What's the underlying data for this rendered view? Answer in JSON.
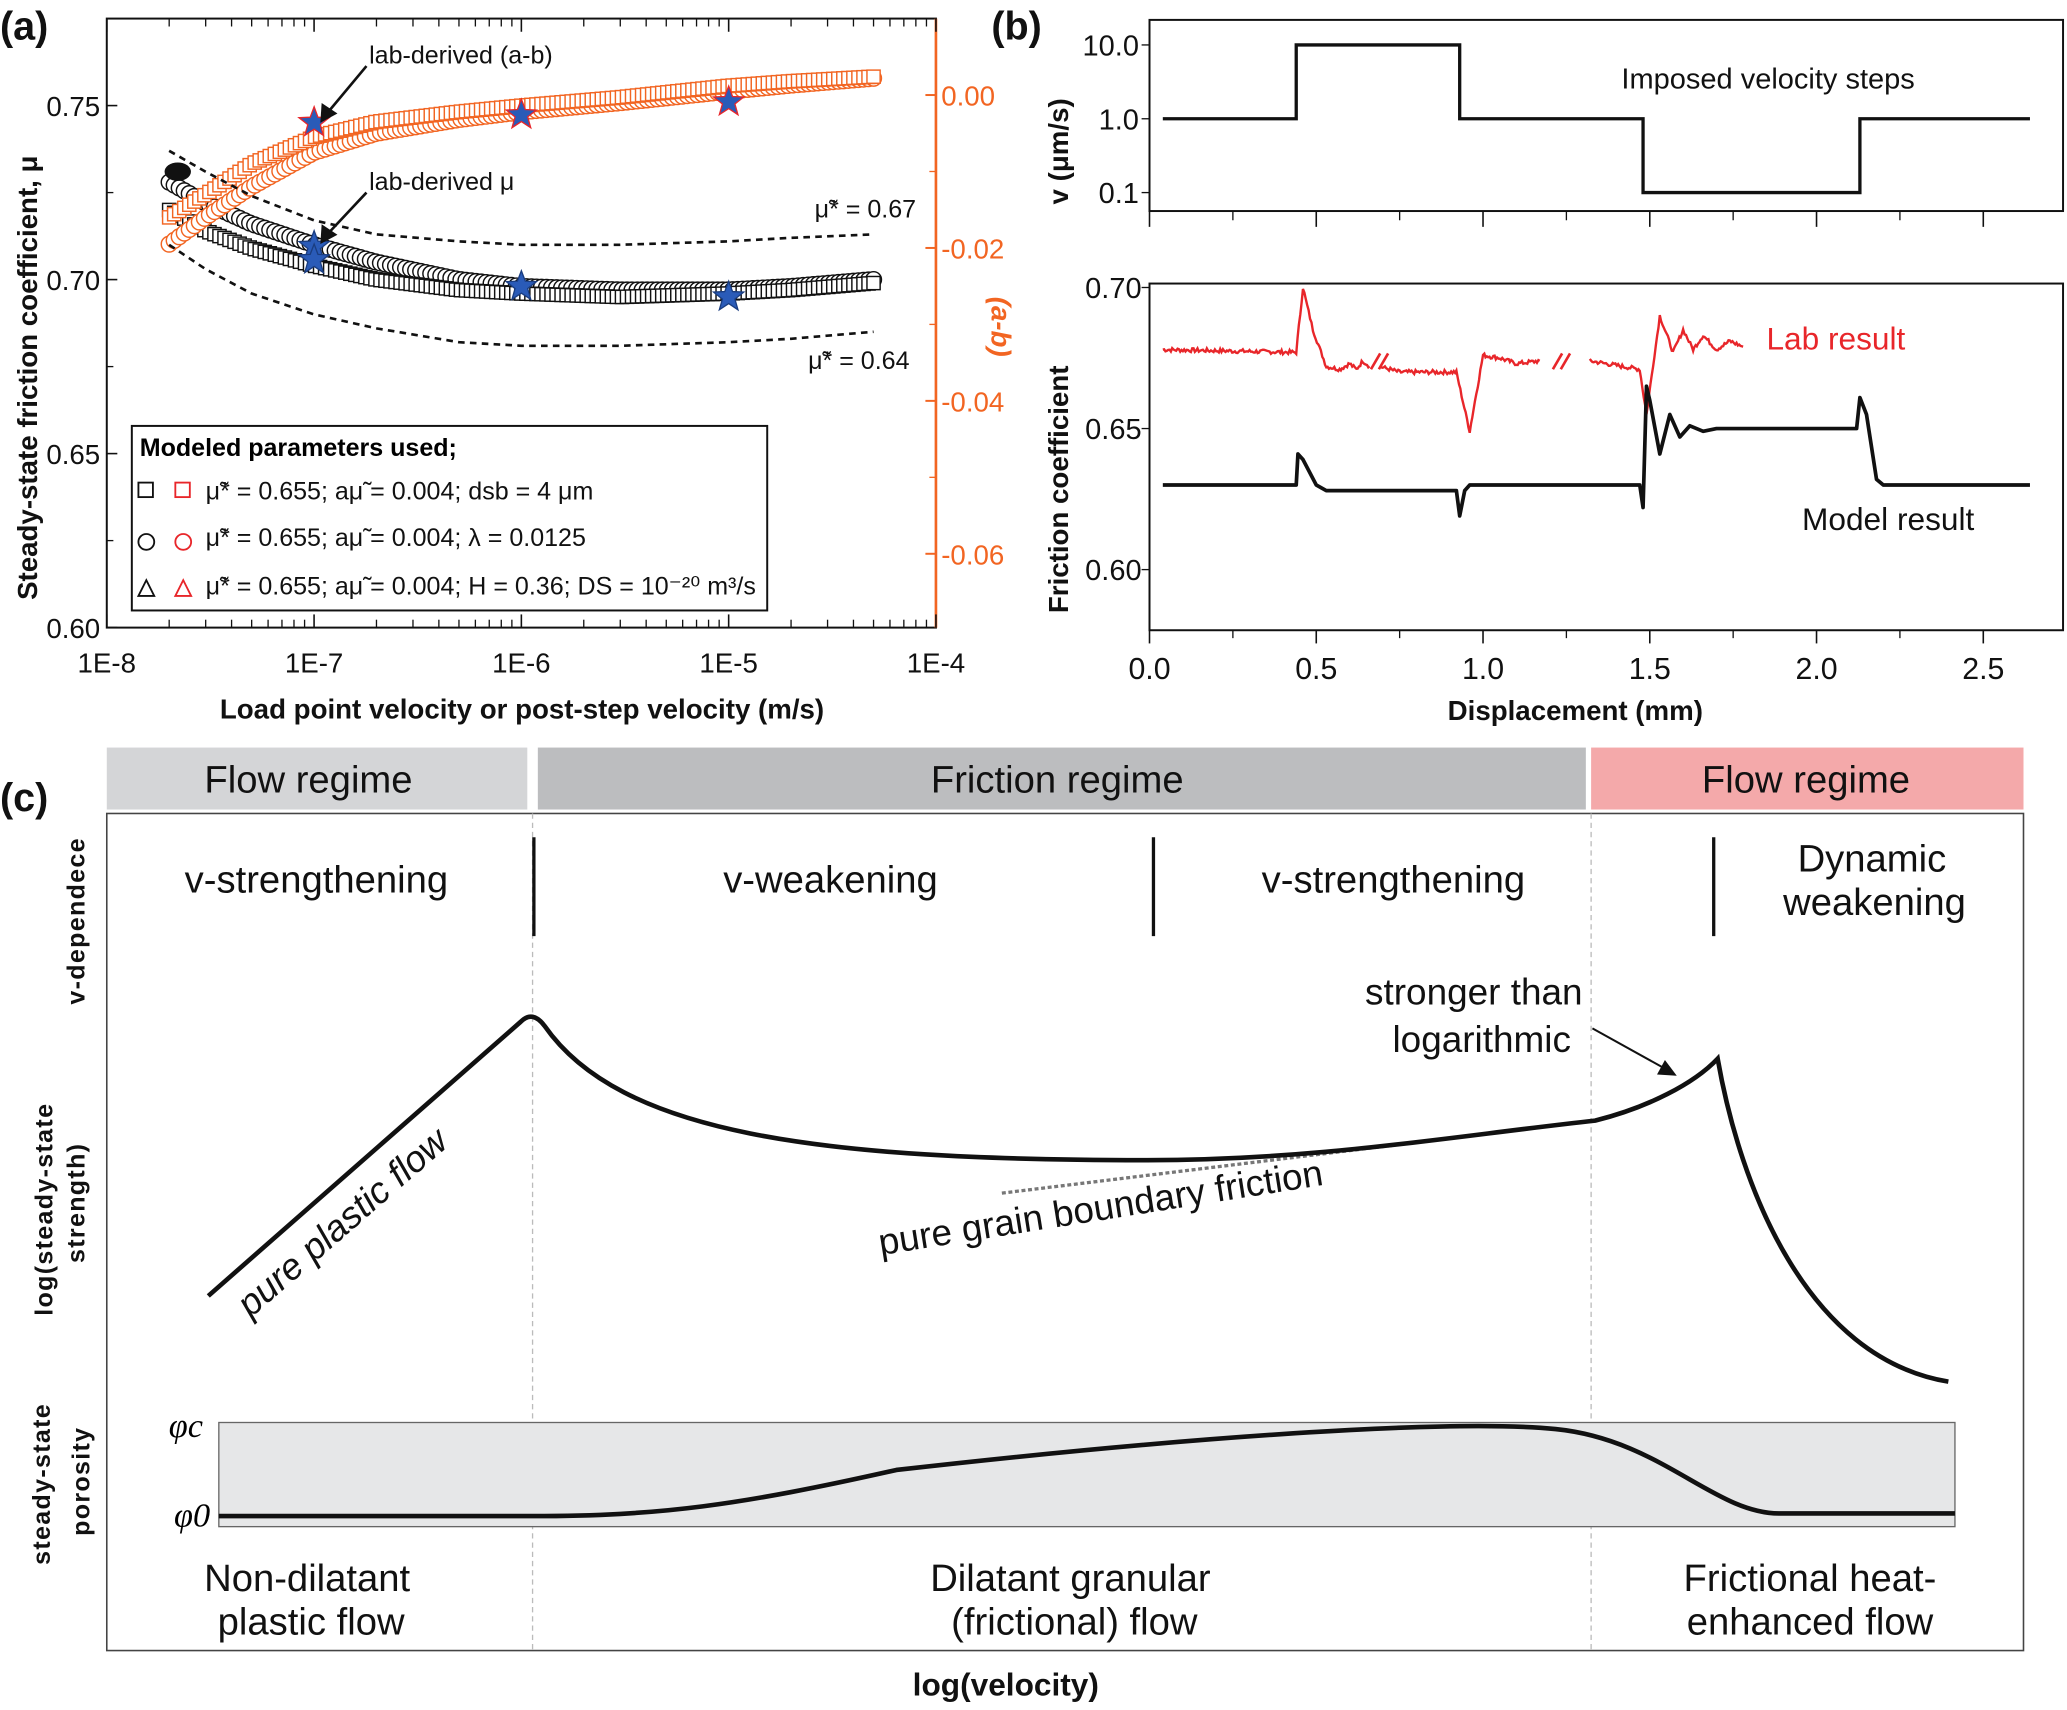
{
  "panel_labels": {
    "a": "(a)",
    "b": "(b)",
    "c": "(c)"
  },
  "chart_data": [
    {
      "id": "a",
      "type": "scatter",
      "title": "",
      "xlabel": "Load point velocity or post-step velocity (m/s)",
      "ylabel": "Steady-state friction coefficient, μ",
      "y2label": "(a-b)",
      "xscale": "log",
      "xlim": [
        1e-08,
        0.0001
      ],
      "ylim": [
        0.6,
        0.77
      ],
      "y2lim": [
        -0.072,
        0.011
      ],
      "xticks": [
        "1E-8",
        "1E-7",
        "1E-6",
        "1E-5",
        "1E-4"
      ],
      "yticks": [
        "0.60",
        "0.65",
        "0.70",
        "0.75"
      ],
      "y2ticks": [
        "0.00",
        "-0.02",
        "-0.04",
        "-0.06"
      ],
      "x": [
        2e-08,
        3e-08,
        5e-08,
        1e-07,
        2e-07,
        5e-07,
        1e-06,
        3e-06,
        1e-05,
        2e-05,
        5e-05
      ],
      "series": [
        {
          "name": "modeled μ (circles)",
          "axis": "left",
          "marker": "circle",
          "color": "#111111",
          "values": [
            0.728,
            0.722,
            0.716,
            0.71,
            0.705,
            0.7,
            0.698,
            0.697,
            0.697,
            0.698,
            0.7
          ]
        },
        {
          "name": "modeled μ (squares)",
          "axis": "left",
          "marker": "square",
          "color": "#111111",
          "values": [
            0.72,
            0.714,
            0.709,
            0.704,
            0.7,
            0.697,
            0.696,
            0.695,
            0.696,
            0.697,
            0.699
          ]
        },
        {
          "name": "modeled (a-b) (circles)",
          "axis": "right",
          "marker": "circle",
          "color": "#f26522",
          "values": [
            -0.0195,
            -0.016,
            -0.012,
            -0.0075,
            -0.005,
            -0.0032,
            -0.0022,
            -0.001,
            0.0005,
            0.0013,
            0.0022
          ]
        },
        {
          "name": "modeled (a-b) (squares)",
          "axis": "right",
          "marker": "square",
          "color": "#f26522",
          "values": [
            -0.016,
            -0.013,
            -0.009,
            -0.0055,
            -0.0035,
            -0.0022,
            -0.0014,
            -0.0003,
            0.0012,
            0.0018,
            0.0024
          ]
        },
        {
          "name": "μ̃* = 0.67",
          "axis": "left",
          "marker": "dashed",
          "color": "#111111",
          "values": [
            0.737,
            0.731,
            0.724,
            0.717,
            0.713,
            0.711,
            0.71,
            0.71,
            0.711,
            0.712,
            0.713
          ]
        },
        {
          "name": "μ̃* = 0.64",
          "axis": "left",
          "marker": "dashed",
          "color": "#111111",
          "values": [
            0.71,
            0.703,
            0.696,
            0.69,
            0.686,
            0.682,
            0.681,
            0.681,
            0.682,
            0.683,
            0.685
          ]
        }
      ],
      "lab_points": {
        "mu": [
          [
            1e-07,
            0.7095
          ],
          [
            1e-07,
            0.7057
          ],
          [
            1e-06,
            0.698
          ],
          [
            1e-05,
            0.695
          ]
        ],
        "ab": [
          [
            1e-07,
            -0.0036
          ],
          [
            1e-06,
            -0.0026
          ],
          [
            1e-05,
            -0.0009
          ]
        ],
        "color": "#2a5bb8"
      },
      "annotations": {
        "lab_ab": "lab-derived (a-b)",
        "lab_mu": "lab-derived μ",
        "mu067": "μ̃* = 0.67",
        "mu064": "μ̃* = 0.64"
      },
      "legend": {
        "title": "Modeled parameters used;",
        "position": "bottom-left",
        "entries": [
          "μ̃* = 0.655;  aμ̃ = 0.004;  dsb = 4 μm",
          "μ̃* = 0.655;  aμ̃ = 0.004;  λ = 0.0125",
          "μ̃* = 0.655;  aμ̃ = 0.004;  H = 0.36;  DS = 10⁻²⁰ m³/s"
        ]
      }
    },
    {
      "id": "b-top",
      "type": "line",
      "ylabel": "v (μm/s)",
      "yscale": "log",
      "yticks": [
        "10.0",
        "1.0",
        "0.1"
      ],
      "xlim": [
        0,
        2.67
      ],
      "annotation": "Imposed velocity steps",
      "points": [
        [
          0.04,
          1
        ],
        [
          0.44,
          1
        ],
        [
          0.44,
          10
        ],
        [
          0.93,
          10
        ],
        [
          0.93,
          1
        ],
        [
          1.48,
          1
        ],
        [
          1.48,
          0.1
        ],
        [
          2.13,
          0.1
        ],
        [
          2.13,
          1
        ],
        [
          2.64,
          1
        ]
      ]
    },
    {
      "id": "b-bottom",
      "type": "line",
      "xlabel": "Displacement (mm)",
      "ylabel": "Friction coefficient",
      "xlim": [
        0,
        2.67
      ],
      "ylim": [
        0.578,
        0.7
      ],
      "xticks": [
        "0.0",
        "0.5",
        "1.0",
        "1.5",
        "2.0",
        "2.5"
      ],
      "yticks": [
        "0.70",
        "0.65",
        "0.60"
      ],
      "series": [
        {
          "name": "Lab result",
          "color": "#e8262a",
          "segments": [
            [
              [
                0.04,
                0.678
              ],
              [
                0.44,
                0.677
              ],
              [
                0.46,
                0.7
              ],
              [
                0.49,
                0.685
              ],
              [
                0.53,
                0.672
              ],
              [
                0.57,
                0.671
              ],
              [
                0.6,
                0.673
              ],
              [
                0.62,
                0.671
              ],
              [
                0.64,
                0.674
              ],
              [
                0.66,
                0.672
              ]
            ],
            [
              [
                0.69,
                0.672
              ],
              [
                0.75,
                0.67
              ],
              [
                0.92,
                0.67
              ],
              [
                0.96,
                0.649
              ],
              [
                1.0,
                0.676
              ],
              [
                1.05,
                0.675
              ],
              [
                1.1,
                0.673
              ],
              [
                1.17,
                0.674
              ]
            ],
            [
              [
                1.32,
                0.674
              ],
              [
                1.47,
                0.671
              ],
              [
                1.49,
                0.655
              ],
              [
                1.53,
                0.69
              ],
              [
                1.57,
                0.677
              ],
              [
                1.6,
                0.685
              ],
              [
                1.63,
                0.678
              ],
              [
                1.66,
                0.683
              ],
              [
                1.7,
                0.678
              ],
              [
                1.74,
                0.681
              ],
              [
                1.78,
                0.679
              ]
            ]
          ]
        },
        {
          "name": "Model result",
          "color": "#111111",
          "segments": [
            [
              [
                0.04,
                0.63
              ],
              [
                0.44,
                0.63
              ],
              [
                0.445,
                0.641
              ],
              [
                0.46,
                0.639
              ],
              [
                0.5,
                0.63
              ],
              [
                0.53,
                0.628
              ],
              [
                0.92,
                0.628
              ],
              [
                0.93,
                0.619
              ],
              [
                0.945,
                0.628
              ],
              [
                0.96,
                0.63
              ],
              [
                1.47,
                0.63
              ],
              [
                1.48,
                0.622
              ],
              [
                1.49,
                0.665
              ],
              [
                1.5,
                0.66
              ],
              [
                1.53,
                0.641
              ],
              [
                1.56,
                0.655
              ],
              [
                1.59,
                0.647
              ],
              [
                1.62,
                0.651
              ],
              [
                1.66,
                0.649
              ],
              [
                1.7,
                0.65
              ],
              [
                2.12,
                0.65
              ],
              [
                2.13,
                0.661
              ],
              [
                2.15,
                0.655
              ],
              [
                2.18,
                0.632
              ],
              [
                2.2,
                0.63
              ],
              [
                2.64,
                0.63
              ]
            ]
          ]
        }
      ]
    }
  ],
  "schematic_c": {
    "regimes": [
      {
        "label": "Flow regime",
        "color": "#d4d5d7"
      },
      {
        "label": "Friction regime",
        "color": "#bcbdbf"
      },
      {
        "label": "Flow regime",
        "color": "#f4a9aa"
      }
    ],
    "v_dependence_label": "v-dependece",
    "v_dependence": [
      "v-strengthening",
      "v-weakening",
      "v-strengthening",
      "Dynamic",
      "weakening"
    ],
    "strength_label_1": "log(steady-state",
    "strength_label_2": "strength)",
    "porosity_label_1": "steady-state",
    "porosity_label_2": "porosity",
    "phi_c": "φc",
    "phi_0": "φ0",
    "annotations": {
      "plastic": "pure plastic flow",
      "grain": "pure grain boundary friction",
      "stronger_1": "stronger than",
      "stronger_2": "logarithmic"
    },
    "bottom_labels": [
      [
        "Non-dilatant",
        "plastic flow"
      ],
      [
        "Dilatant granular",
        "(frictional) flow"
      ],
      [
        "Frictional heat-",
        "enhanced flow"
      ]
    ],
    "xlabel": "log(velocity)"
  }
}
